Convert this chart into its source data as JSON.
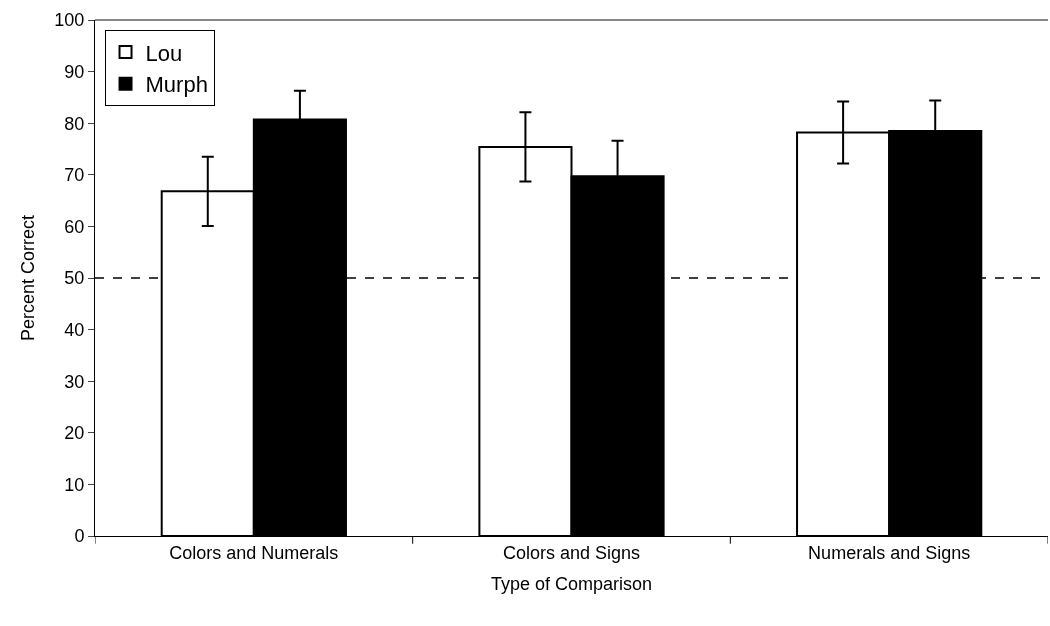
{
  "chart_data": {
    "type": "bar",
    "xlabel": "Type of Comparison",
    "ylabel": "Percent Correct",
    "categories": [
      "Colors and Numerals",
      "Colors and Signs",
      "Numerals and Signs"
    ],
    "series": [
      {
        "name": "Lou",
        "color": "#ffffff",
        "values": [
          66.8,
          75.4,
          78.2
        ],
        "errors": [
          6.7,
          6.7,
          6.0
        ]
      },
      {
        "name": "Murph",
        "color": "#000000",
        "values": [
          80.7,
          69.7,
          78.5
        ],
        "errors": [
          5.6,
          6.9,
          5.9
        ]
      }
    ],
    "ylim": [
      0,
      100
    ],
    "yticks": [
      0,
      10,
      20,
      30,
      40,
      50,
      60,
      70,
      80,
      90,
      100
    ],
    "ref_lines": [
      {
        "axis": "y",
        "value": 50,
        "color": "#000000",
        "line_style": "dashed"
      }
    ],
    "grid": false,
    "legend": "top left"
  }
}
